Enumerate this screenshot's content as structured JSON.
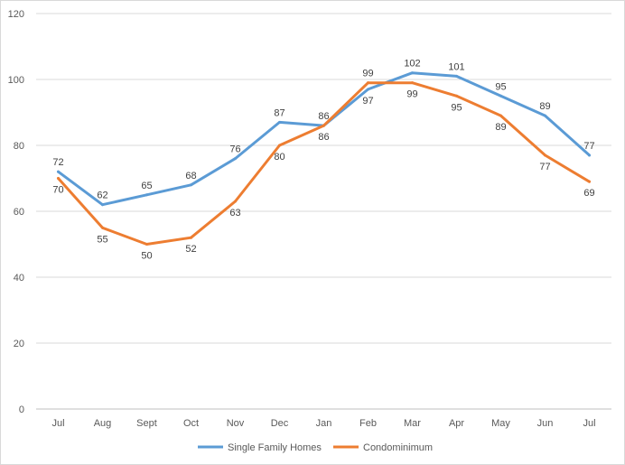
{
  "chart_data": {
    "type": "line",
    "categories": [
      "Jul",
      "Aug",
      "Sept",
      "Oct",
      "Nov",
      "Dec",
      "Jan",
      "Feb",
      "Mar",
      "Apr",
      "May",
      "Jun",
      "Jul"
    ],
    "series": [
      {
        "name": "Single Family Homes",
        "color": "#5b9bd5",
        "values": [
          72,
          62,
          65,
          68,
          76,
          87,
          86,
          97,
          102,
          101,
          95,
          89,
          77
        ]
      },
      {
        "name": "Condominimum",
        "color": "#ed7d31",
        "values": [
          70,
          55,
          50,
          52,
          63,
          80,
          86,
          99,
          99,
          95,
          89,
          77,
          69
        ]
      }
    ],
    "ylim": [
      0,
      120
    ],
    "yticks": [
      0,
      20,
      40,
      60,
      80,
      100,
      120
    ],
    "grid": true,
    "legend": "bottom",
    "data_labels": true
  }
}
